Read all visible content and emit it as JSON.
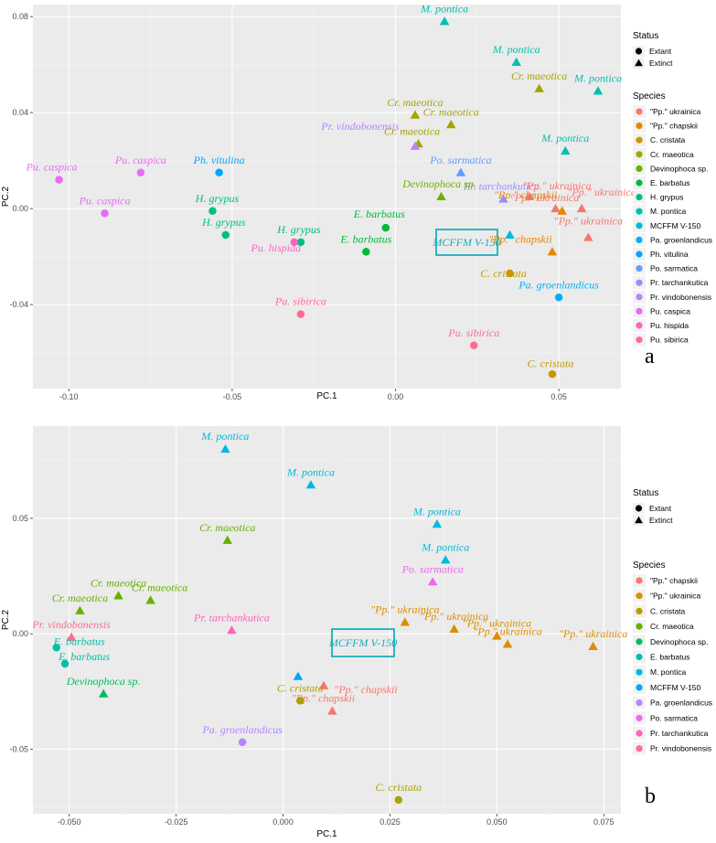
{
  "chart_data": [
    {
      "type": "scatter",
      "panel_label": "a",
      "xlabel": "PC.1",
      "ylabel": "PC.2",
      "xlim": [
        -0.111,
        0.069
      ],
      "ylim": [
        -0.075,
        0.085
      ],
      "xticks": [
        -0.1,
        -0.05,
        0.0,
        0.05
      ],
      "xtick_labels": [
        "-0.10",
        "-0.05",
        "0.00",
        "0.05"
      ],
      "yticks": [
        -0.04,
        0.0,
        0.04,
        0.08
      ],
      "ytick_labels": [
        "-0.04",
        "0.00",
        "0.04",
        "0.08"
      ],
      "grid": true,
      "legend": {
        "status_title": "Status",
        "status_items": [
          "Extant",
          "Extinct"
        ],
        "species_title": "Species",
        "species": [
          {
            "name": "\"Pp.\" ukrainica",
            "color": "#F8766D"
          },
          {
            "name": "\"Pp.\" chapskii",
            "color": "#E58700"
          },
          {
            "name": "C. cristata",
            "color": "#C99800"
          },
          {
            "name": "Cr. maeotica",
            "color": "#A3A500"
          },
          {
            "name": "Devinophoca sp.",
            "color": "#6BB100"
          },
          {
            "name": "E. barbatus",
            "color": "#00BA38"
          },
          {
            "name": "H. grypus",
            "color": "#00BF7D"
          },
          {
            "name": "M. pontica",
            "color": "#00C0AF"
          },
          {
            "name": "MCFFM V-150",
            "color": "#00BCD8"
          },
          {
            "name": "Pa. groenlandicus",
            "color": "#00B0F6"
          },
          {
            "name": "Ph. vitulina",
            "color": "#00A5FF"
          },
          {
            "name": "Po. sarmatica",
            "color": "#619CFF"
          },
          {
            "name": "Pr. tarchankutica",
            "color": "#9590FF"
          },
          {
            "name": "Pr. vindobonensis",
            "color": "#B983FF"
          },
          {
            "name": "Pu. caspica",
            "color": "#E76BF3"
          },
          {
            "name": "Pu. hispida",
            "color": "#FF61C3"
          },
          {
            "name": "Pu. sibirica",
            "color": "#FF6C91"
          }
        ]
      },
      "highlight_label": "MCFFM V-150",
      "points": [
        {
          "species": "M. pontica",
          "label": "M. pontica",
          "status": "Extinct",
          "x": 0.015,
          "y": 0.078
        },
        {
          "species": "M. pontica",
          "label": "M. pontica",
          "status": "Extinct",
          "x": 0.037,
          "y": 0.061
        },
        {
          "species": "M. pontica",
          "label": "M. pontica",
          "status": "Extinct",
          "x": 0.062,
          "y": 0.049
        },
        {
          "species": "M. pontica",
          "label": "M. pontica",
          "status": "Extinct",
          "x": 0.052,
          "y": 0.024
        },
        {
          "species": "Cr. maeotica",
          "label": "Cr. maeotica",
          "status": "Extinct",
          "x": 0.044,
          "y": 0.05
        },
        {
          "species": "Cr. maeotica",
          "label": "Cr. maeotica",
          "status": "Extinct",
          "x": 0.006,
          "y": 0.039
        },
        {
          "species": "Cr. maeotica",
          "label": "Cr. maeotica",
          "status": "Extinct",
          "x": 0.017,
          "y": 0.035
        },
        {
          "species": "Cr. maeotica",
          "label": "Cr. maeotica",
          "status": "Extinct",
          "x": 0.007,
          "y": 0.027
        },
        {
          "species": "Pr. vindobonensis",
          "label": "Pr. vindobonensis",
          "status": "Extinct",
          "x": 0.006,
          "y": 0.026
        },
        {
          "species": "Pu. caspica",
          "label": "Pu. caspica",
          "status": "Extant",
          "x": -0.103,
          "y": 0.012
        },
        {
          "species": "Pu. caspica",
          "label": "Pu. caspica",
          "status": "Extant",
          "x": -0.078,
          "y": 0.015
        },
        {
          "species": "Pu. caspica",
          "label": "Pu. caspica",
          "status": "Extant",
          "x": -0.089,
          "y": -0.002
        },
        {
          "species": "Ph. vitulina",
          "label": "Ph. vitulina",
          "status": "Extant",
          "x": -0.054,
          "y": 0.015
        },
        {
          "species": "Po. sarmatica",
          "label": "Po. sarmatica",
          "status": "Extinct",
          "x": 0.02,
          "y": 0.015
        },
        {
          "species": "Pr. tarchankutica",
          "label": "Pr. tarchankutica",
          "status": "Extinct",
          "x": 0.033,
          "y": 0.004
        },
        {
          "species": "Devinophoca sp.",
          "label": "Devinophoca sp.",
          "status": "Extinct",
          "x": 0.014,
          "y": 0.005
        },
        {
          "species": "\"Pp.\" ukrainica",
          "label": "\"Pp.\" ukrainica",
          "status": "Extinct",
          "x": 0.041,
          "y": 0.005
        },
        {
          "species": "\"Pp.\" ukrainica",
          "label": "\"Pp.\" ukrainica",
          "status": "Extinct",
          "x": 0.049,
          "y": 0.0
        },
        {
          "species": "\"Pp.\" ukrainica",
          "label": "\"Pp.\" ukrainica",
          "status": "Extinct",
          "x": 0.057,
          "y": 0.0
        },
        {
          "species": "\"Pp.\" ukrainica",
          "label": "\"Pp.\" ukrainica",
          "status": "Extinct",
          "x": 0.059,
          "y": -0.012
        },
        {
          "species": "\"Pp.\" chapskii",
          "label": "\"Pp.\" chapskii",
          "status": "Extinct",
          "x": 0.051,
          "y": -0.001
        },
        {
          "species": "\"Pp.\" chapskii",
          "label": "\"Pp.\" chapskii",
          "status": "Extinct",
          "x": 0.048,
          "y": -0.018
        },
        {
          "species": "H. grypus",
          "label": "H. grypus",
          "status": "Extant",
          "x": -0.056,
          "y": -0.001
        },
        {
          "species": "H. grypus",
          "label": "H. grypus",
          "status": "Extant",
          "x": -0.052,
          "y": -0.011
        },
        {
          "species": "H. grypus",
          "label": "H. grypus",
          "status": "Extant",
          "x": -0.029,
          "y": -0.014
        },
        {
          "species": "E. barbatus",
          "label": "E. barbatus",
          "status": "Extant",
          "x": -0.003,
          "y": -0.008
        },
        {
          "species": "E. barbatus",
          "label": "E. barbatus",
          "status": "Extant",
          "x": -0.009,
          "y": -0.018
        },
        {
          "species": "Pu. hispida",
          "label": "Pu. hispida",
          "status": "Extant",
          "x": -0.031,
          "y": -0.014
        },
        {
          "species": "MCFFM V-150",
          "label": "",
          "status": "Extinct",
          "x": 0.035,
          "y": -0.011
        },
        {
          "species": "C. cristata",
          "label": "C. cristata",
          "status": "Extant",
          "x": 0.035,
          "y": -0.027
        },
        {
          "species": "C. cristata",
          "label": "C. cristata",
          "status": "Extant",
          "x": 0.048,
          "y": -0.069
        },
        {
          "species": "Pa. groenlandicus",
          "label": "Pa. groenlandicus",
          "status": "Extant",
          "x": 0.05,
          "y": -0.037
        },
        {
          "species": "Pu. sibirica",
          "label": "Pu. sibirica",
          "status": "Extant",
          "x": -0.029,
          "y": -0.044
        },
        {
          "species": "Pu. sibirica",
          "label": "Pu. sibirica",
          "status": "Extant",
          "x": 0.024,
          "y": -0.057
        }
      ]
    },
    {
      "type": "scatter",
      "panel_label": "b",
      "xlabel": "PC.1",
      "ylabel": "PC.2",
      "xlim": [
        -0.0585,
        0.079
      ],
      "ylim": [
        -0.078,
        0.09
      ],
      "xticks": [
        -0.05,
        -0.025,
        0.0,
        0.025,
        0.05,
        0.075
      ],
      "xtick_labels": [
        "-0.050",
        "-0.025",
        "0.000",
        "0.025",
        "0.050",
        "0.075"
      ],
      "yticks": [
        -0.05,
        0.0,
        0.05
      ],
      "ytick_labels": [
        "-0.05",
        "0.00",
        "0.05"
      ],
      "grid": true,
      "legend": {
        "status_title": "Status",
        "status_items": [
          "Extant",
          "Extinct"
        ],
        "species_title": "Species",
        "species": [
          {
            "name": "\"Pp.\" chapskii",
            "color": "#F8766D"
          },
          {
            "name": "\"Pp.\" ukrainica",
            "color": "#DB8E00"
          },
          {
            "name": "C. cristata",
            "color": "#AEA200"
          },
          {
            "name": "Cr. maeotica",
            "color": "#64B200"
          },
          {
            "name": "Devinophoca sp.",
            "color": "#00BD5C"
          },
          {
            "name": "E. barbatus",
            "color": "#00C1A7"
          },
          {
            "name": "M. pontica",
            "color": "#00BADE"
          },
          {
            "name": "MCFFM V-150",
            "color": "#00A6FF"
          },
          {
            "name": "Pa. groenlandicus",
            "color": "#B385FF"
          },
          {
            "name": "Po. sarmatica",
            "color": "#EF67EB"
          },
          {
            "name": "Pr. tarchankutica",
            "color": "#FF63B6"
          },
          {
            "name": "Pr. vindobonensis",
            "color": "#FF6C91"
          }
        ]
      },
      "highlight_label": "MCFFM V-150",
      "points": [
        {
          "species": "M. pontica",
          "label": "M. pontica",
          "status": "Extinct",
          "x": -0.0135,
          "y": 0.08
        },
        {
          "species": "M. pontica",
          "label": "M. pontica",
          "status": "Extinct",
          "x": 0.0065,
          "y": 0.0645
        },
        {
          "species": "M. pontica",
          "label": "M. pontica",
          "status": "Extinct",
          "x": 0.036,
          "y": 0.0475
        },
        {
          "species": "M. pontica",
          "label": "M. pontica",
          "status": "Extinct",
          "x": 0.038,
          "y": 0.032
        },
        {
          "species": "Cr. maeotica",
          "label": "Cr. maeotica",
          "status": "Extinct",
          "x": -0.013,
          "y": 0.0405
        },
        {
          "species": "Cr. maeotica",
          "label": "Cr. maeotica",
          "status": "Extinct",
          "x": -0.0385,
          "y": 0.0165
        },
        {
          "species": "Cr. maeotica",
          "label": "Cr. maeotica",
          "status": "Extinct",
          "x": -0.031,
          "y": 0.0145
        },
        {
          "species": "Cr. maeotica",
          "label": "Cr. maeotica",
          "status": "Extinct",
          "x": -0.0475,
          "y": 0.01
        },
        {
          "species": "Po. sarmatica",
          "label": "Po. sarmatica",
          "status": "Extinct",
          "x": 0.035,
          "y": 0.0225
        },
        {
          "species": "Pr. vindobonensis",
          "label": "Pr. vindobonensis",
          "status": "Extinct",
          "x": -0.0495,
          "y": -0.0015
        },
        {
          "species": "Pr. tarchankutica",
          "label": "Pr. tarchankutica",
          "status": "Extinct",
          "x": -0.012,
          "y": 0.0015
        },
        {
          "species": "\"Pp.\" ukrainica",
          "label": "\"Pp.\" ukrainica",
          "status": "Extinct",
          "x": 0.0285,
          "y": 0.005
        },
        {
          "species": "\"Pp.\" ukrainica",
          "label": "\"Pp.\" ukrainica",
          "status": "Extinct",
          "x": 0.04,
          "y": 0.002
        },
        {
          "species": "\"Pp.\" ukrainica",
          "label": "\"Pp.\" ukrainica",
          "status": "Extinct",
          "x": 0.05,
          "y": -0.001
        },
        {
          "species": "\"Pp.\" ukrainica",
          "label": "\"Pp.\" ukrainica",
          "status": "Extinct",
          "x": 0.0525,
          "y": -0.0045
        },
        {
          "species": "\"Pp.\" ukrainica",
          "label": "\"Pp.\" ukrainica",
          "status": "Extinct",
          "x": 0.0725,
          "y": -0.0055
        },
        {
          "species": "E. barbatus",
          "label": "E. barbatus",
          "status": "Extant",
          "x": -0.053,
          "y": -0.006
        },
        {
          "species": "E. barbatus",
          "label": "E. barbatus",
          "status": "Extant",
          "x": -0.051,
          "y": -0.013
        },
        {
          "species": "Devinophoca sp.",
          "label": "Devinophoca sp.",
          "status": "Extinct",
          "x": -0.042,
          "y": -0.026
        },
        {
          "species": "MCFFM V-150",
          "label": "",
          "status": "Extinct",
          "x": 0.0035,
          "y": -0.0185
        },
        {
          "species": "\"Pp.\" chapskii",
          "label": "\"Pp.\" chapskii",
          "status": "Extinct",
          "x": 0.0095,
          "y": -0.0225
        },
        {
          "species": "\"Pp.\" chapskii",
          "label": "\"Pp.\" chapskii",
          "status": "Extinct",
          "x": 0.0115,
          "y": -0.0335
        },
        {
          "species": "C. cristata",
          "label": "C. cristata",
          "status": "Extant",
          "x": 0.004,
          "y": -0.029
        },
        {
          "species": "C. cristata",
          "label": "C. cristata",
          "status": "Extant",
          "x": 0.027,
          "y": -0.072
        },
        {
          "species": "Pa. groenlandicus",
          "label": "Pa. groenlandicus",
          "status": "Extant",
          "x": -0.0095,
          "y": -0.047
        }
      ]
    }
  ]
}
